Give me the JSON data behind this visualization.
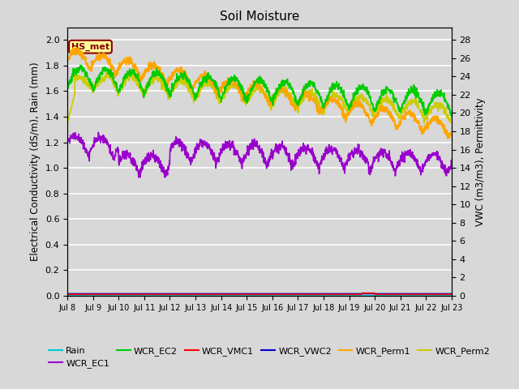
{
  "title": "Soil Moisture",
  "ylabel_left": "Electrical Conductivity (dS/m), Rain (mm)",
  "ylabel_right": "VWC (m3/m3), Permittivity",
  "annotation_text": "HS_met",
  "annotation_color": "#8B0000",
  "annotation_bg": "#FFFF99",
  "bg_color": "#D8D8D8",
  "ylim_left": [
    0.0,
    2.1
  ],
  "ylim_right": [
    0.0,
    29.4
  ],
  "line_colors": {
    "Rain": "#00CCCC",
    "WCR_EC1": "#9900CC",
    "WCR_EC2": "#00CC00",
    "WCR_VMC1": "#FF0000",
    "WCR_VWC2": "#0000CC",
    "WCR_Perm1": "#FFA500",
    "WCR_Perm2": "#CCCC00"
  },
  "legend_labels": [
    "Rain",
    "WCR_EC1",
    "WCR_EC2",
    "WCR_VMC1",
    "WCR_VWC2",
    "WCR_Perm1",
    "WCR_Perm2"
  ]
}
